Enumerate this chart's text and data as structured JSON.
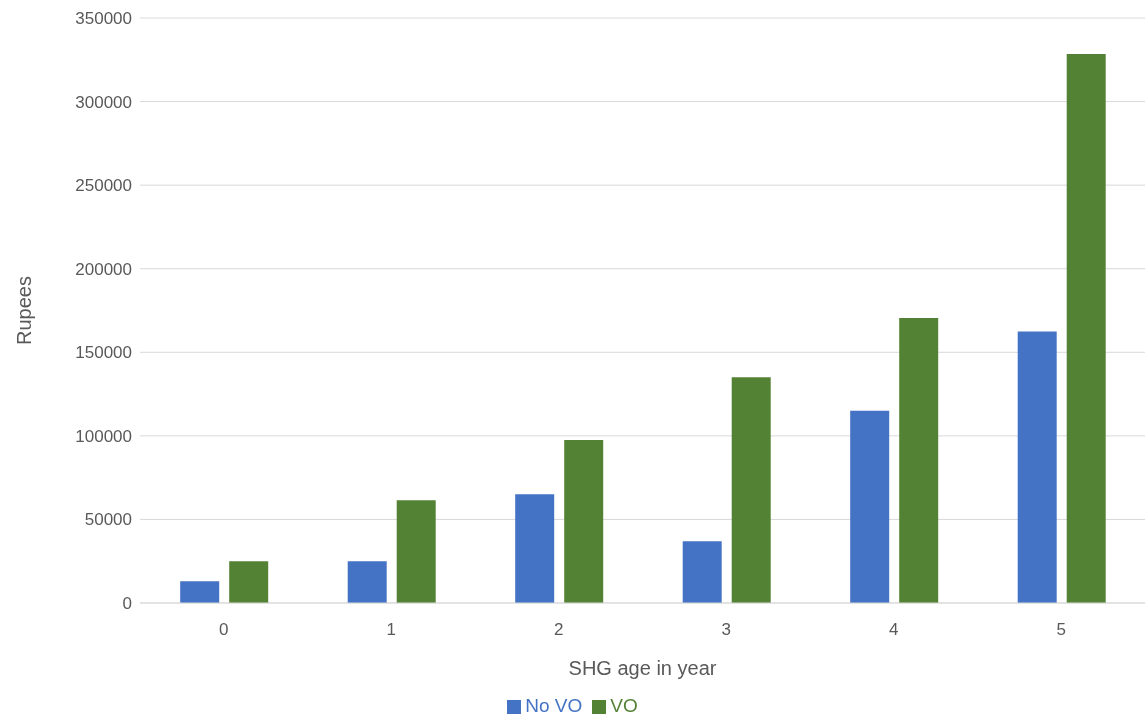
{
  "chart_data": {
    "type": "bar",
    "xlabel": "SHG age in year",
    "ylabel": "Rupees",
    "categories": [
      "0",
      "1",
      "2",
      "3",
      "4",
      "5"
    ],
    "series": [
      {
        "name": "No VO",
        "color": "#4472c4",
        "values": [
          13000,
          25000,
          65000,
          37000,
          115000,
          162500
        ]
      },
      {
        "name": "VO",
        "color": "#548235",
        "values": [
          25000,
          61500,
          97500,
          135000,
          170500,
          328500
        ]
      }
    ],
    "ylim": [
      0,
      350000
    ],
    "yticks": [
      0,
      50000,
      100000,
      150000,
      200000,
      250000,
      300000,
      350000
    ],
    "grid": "y",
    "legend": "bottom"
  }
}
